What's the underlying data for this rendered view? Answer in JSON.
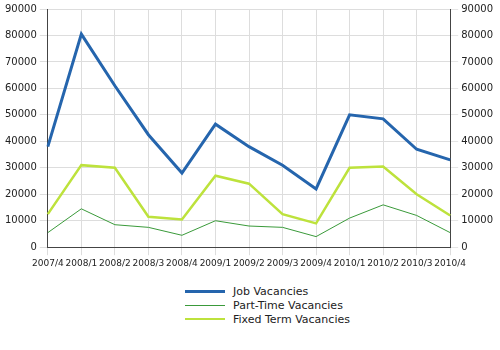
{
  "chart_data": {
    "type": "line",
    "categories": [
      "2007/4",
      "2008/1",
      "2008/2",
      "2008/3",
      "2008/4",
      "2009/1",
      "2009/2",
      "2009/3",
      "2009/4",
      "2010/1",
      "2010/2",
      "2010/3",
      "2010/4"
    ],
    "series": [
      {
        "name": "Job Vacancies",
        "color": "#2565ad",
        "values": [
          38000,
          80500,
          61000,
          42500,
          28000,
          46500,
          38000,
          31000,
          22000,
          50000,
          48500,
          37000,
          33000
        ]
      },
      {
        "name": "Part-Time Vacancies",
        "color": "#3a9a3a",
        "values": [
          5500,
          14500,
          8500,
          7500,
          4500,
          10000,
          8000,
          7500,
          4000,
          11000,
          16000,
          12000,
          5500
        ]
      },
      {
        "name": "Fixed Term Vacancies",
        "color": "#bde23c",
        "values": [
          12500,
          31000,
          30000,
          11500,
          10500,
          27000,
          24000,
          12500,
          9000,
          30000,
          30500,
          20000,
          12000
        ]
      }
    ],
    "ylim": [
      0,
      90000
    ],
    "yticks": [
      0,
      10000,
      20000,
      30000,
      40000,
      50000,
      60000,
      70000,
      80000,
      90000
    ],
    "y2lim": [
      0,
      90000
    ],
    "y2ticks": [
      0,
      10000,
      20000,
      30000,
      40000,
      50000,
      60000,
      70000,
      80000,
      90000
    ],
    "grid": true,
    "legend": "bottom"
  }
}
